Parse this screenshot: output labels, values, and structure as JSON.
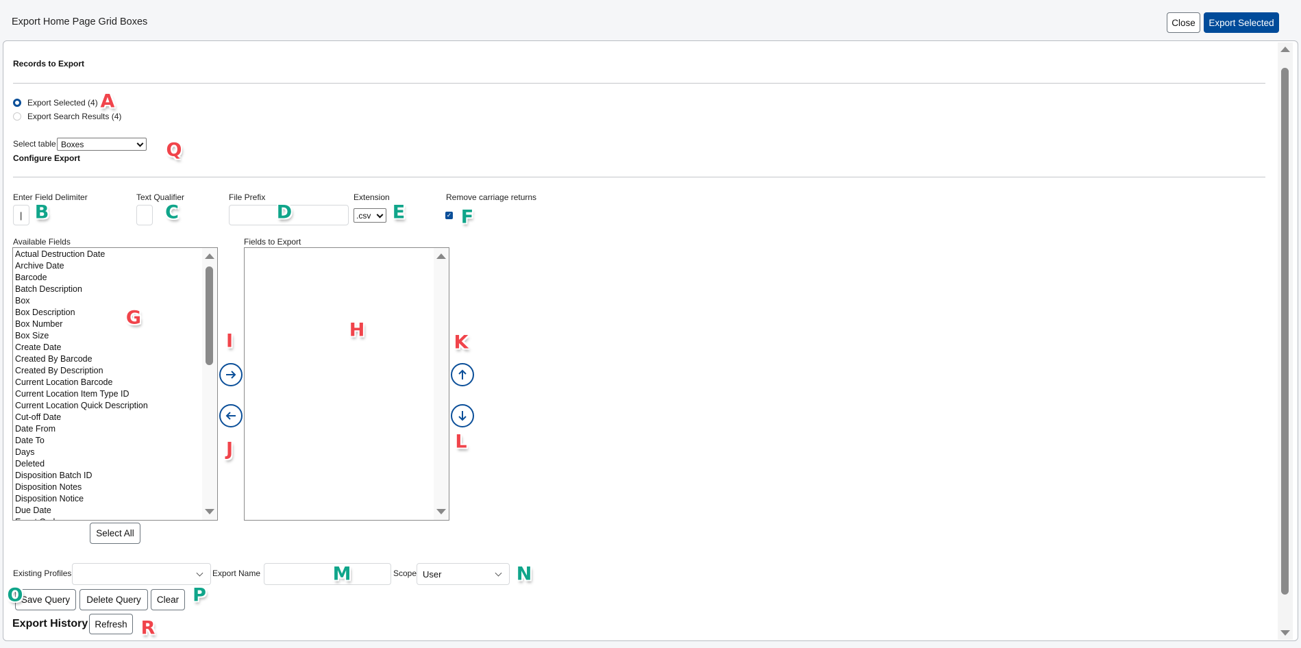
{
  "header": {
    "title": "Export Home Page Grid Boxes",
    "close_label": "Close",
    "export_label": "Export Selected"
  },
  "records": {
    "heading": "Records to Export",
    "options": [
      {
        "label": "Export Selected (4)",
        "checked": true
      },
      {
        "label": "Export Search Results (4)",
        "checked": false
      }
    ],
    "select_table_label": "Select table",
    "select_table_value": "Boxes"
  },
  "configure": {
    "heading": "Configure Export",
    "delimiter_label": "Enter Field Delimiter",
    "delimiter_value": "|",
    "qualifier_label": "Text Qualifier",
    "qualifier_value": "",
    "prefix_label": "File Prefix",
    "prefix_value": "",
    "extension_label": "Extension",
    "extension_value": ".csv",
    "remove_cr_label": "Remove carriage returns",
    "remove_cr_checked": true
  },
  "available": {
    "label": "Available Fields",
    "items": [
      "Actual Destruction Date",
      "Archive Date",
      "Barcode",
      "Batch Description",
      "Box",
      "Box Description",
      "Box Number",
      "Box Size",
      "Create Date",
      "Created By Barcode",
      "Created By Description",
      "Current Location Barcode",
      "Current Location Item Type ID",
      "Current Location Quick Description",
      "Cut-off Date",
      "Date From",
      "Date To",
      "Days",
      "Deleted",
      "Disposition Batch ID",
      "Disposition Notes",
      "Disposition Notice",
      "Due Date",
      "Event Code"
    ],
    "select_all_label": "Select All"
  },
  "export_fields": {
    "label": "Fields to Export",
    "items": []
  },
  "profiles": {
    "existing_label": "Existing Profiles",
    "existing_value": "",
    "export_name_label": "Export Name",
    "export_name_value": "",
    "scope_label": "Scope",
    "scope_value": "User",
    "save_label": "Save Query",
    "delete_label": "Delete Query",
    "clear_label": "Clear"
  },
  "history": {
    "heading": "Export History",
    "refresh_label": "Refresh"
  },
  "annotations": {
    "colors": {
      "red": "#f0444b",
      "green": "#10a58a"
    },
    "A": "A",
    "B": "B",
    "C": "C",
    "D": "D",
    "E": "E",
    "F": "F",
    "G": "G",
    "H": "H",
    "I": "I",
    "J": "J",
    "K": "K",
    "L": "L",
    "M": "M",
    "N": "N",
    "O": "O",
    "P": "P",
    "Q": "Q",
    "R": "R"
  }
}
